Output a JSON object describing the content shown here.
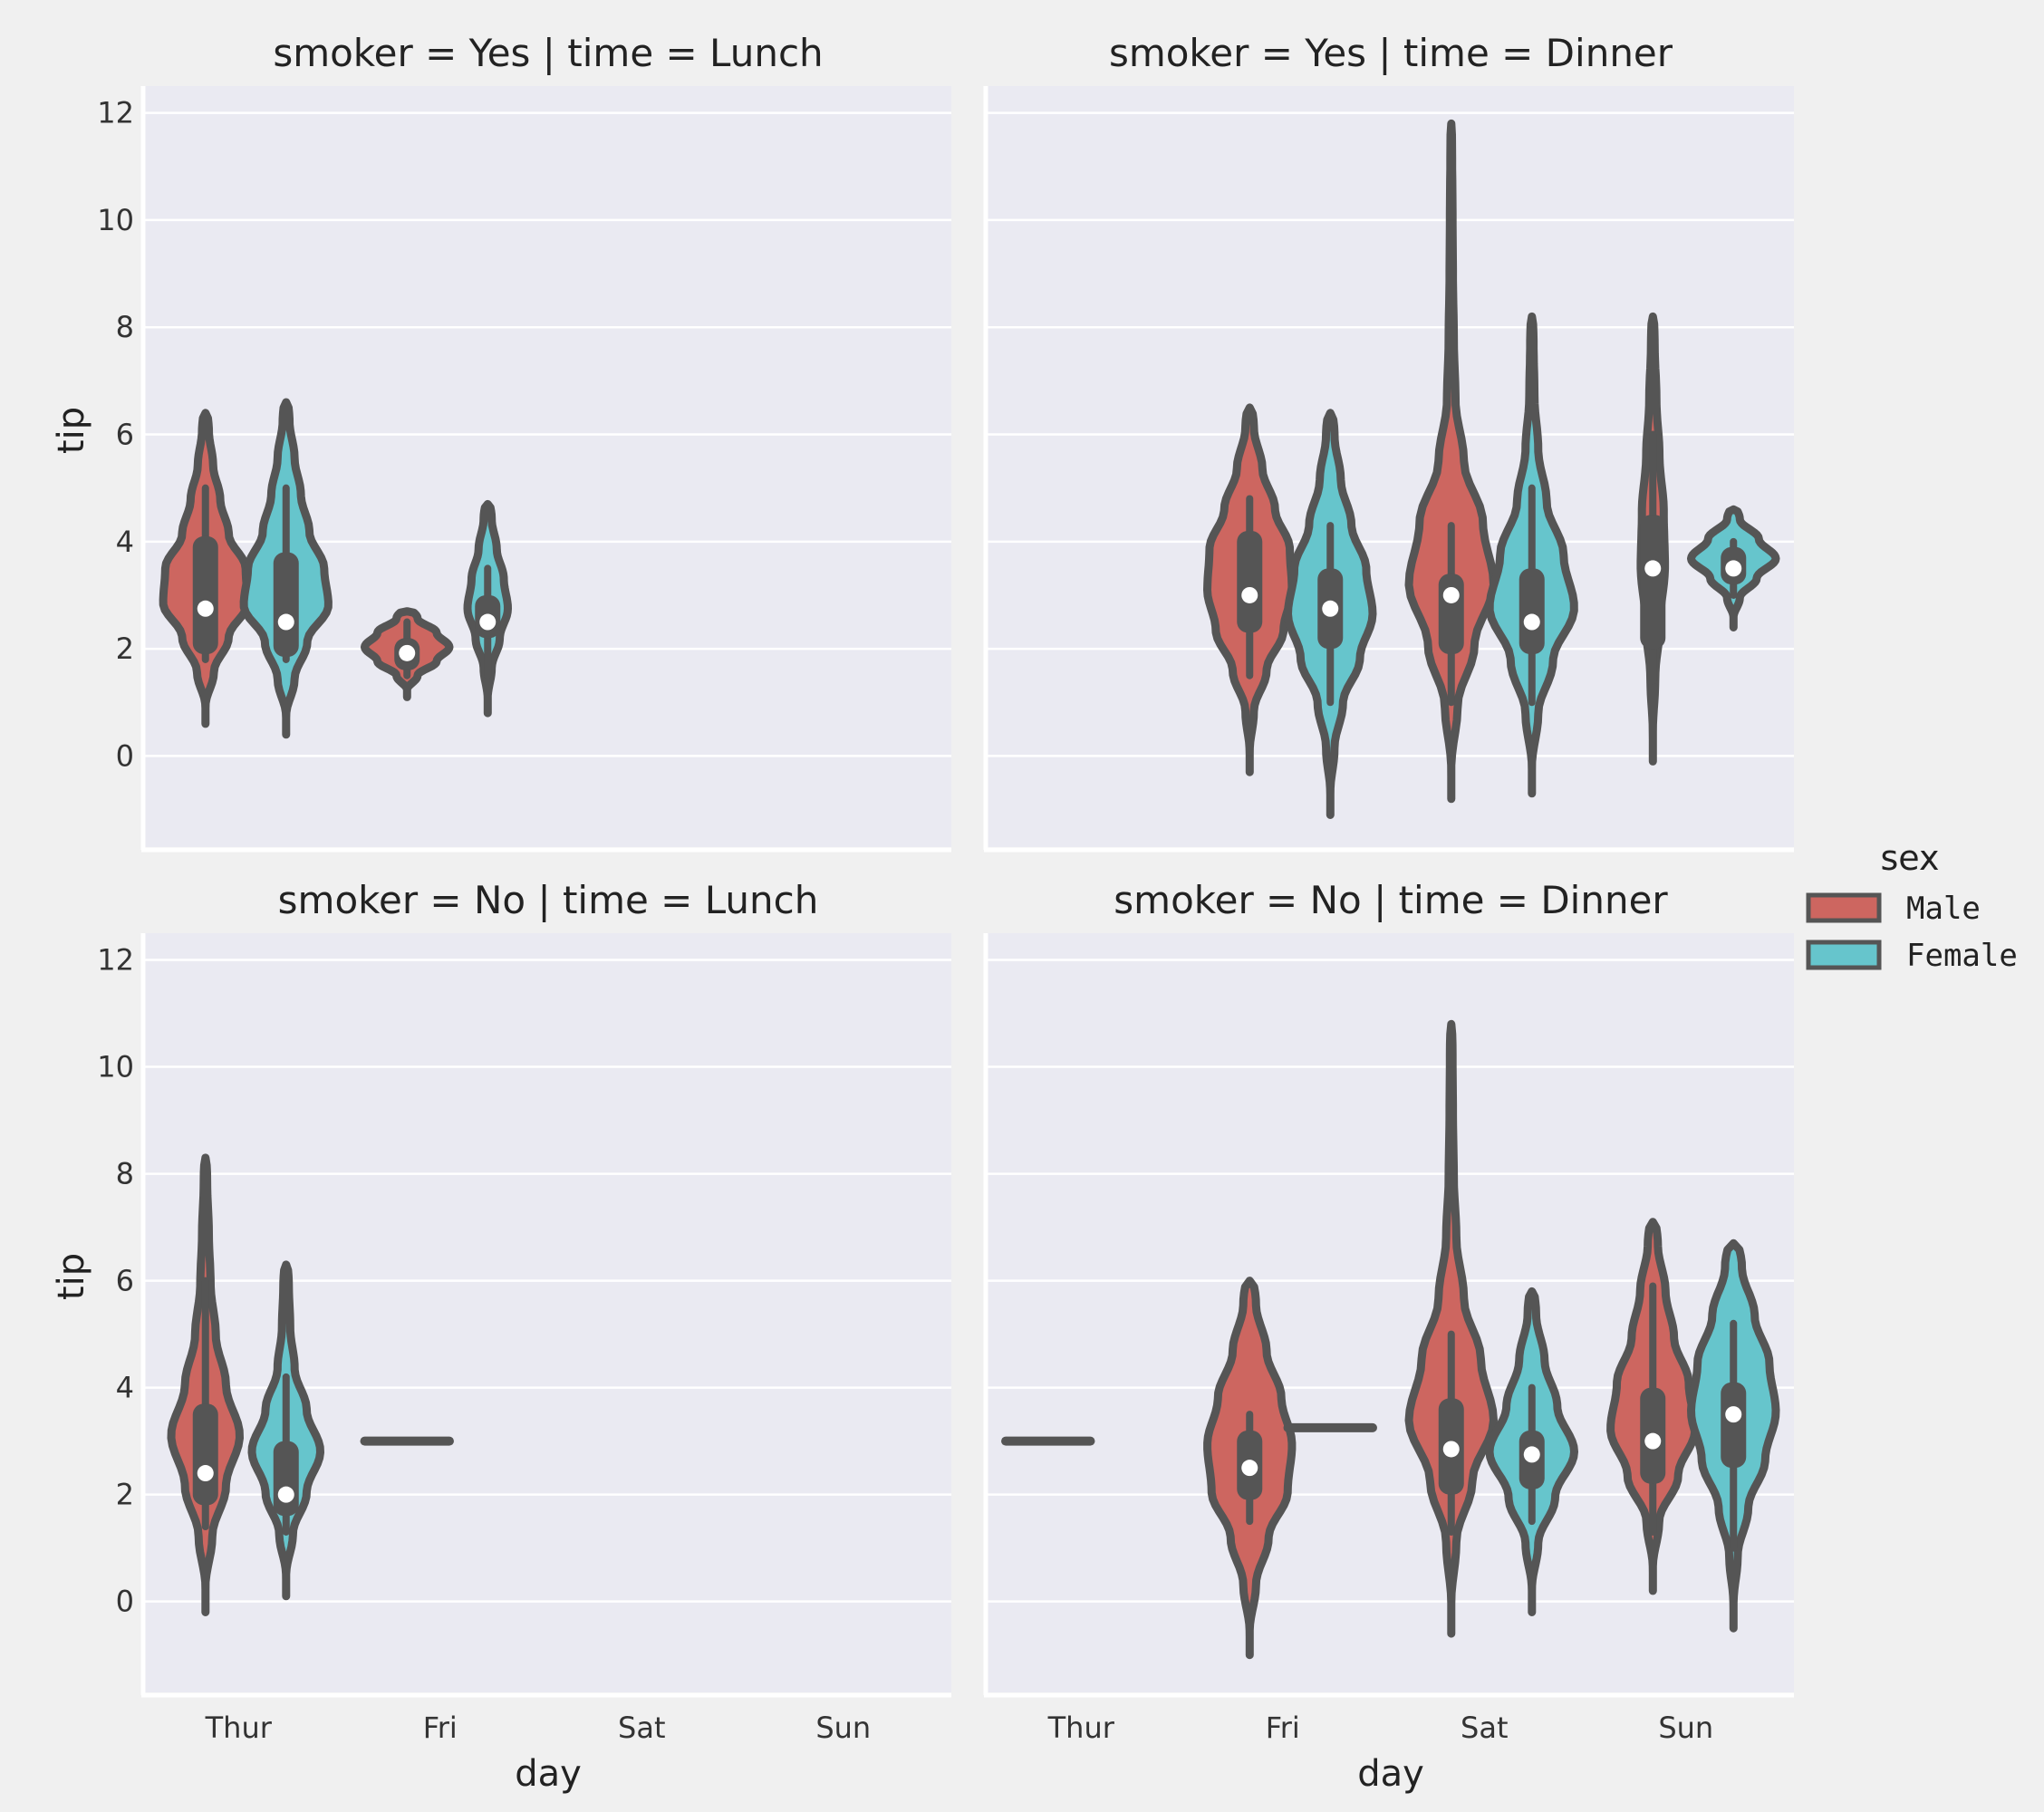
{
  "colors": {
    "background": "#f0f0f0",
    "panel": "#eaeaf2",
    "grid": "#ffffff",
    "outline": "#555555",
    "Male": "#cd6660",
    "Female": "#66c5cc",
    "median_dot": "#ffffff"
  },
  "chart_data": {
    "type": "violin",
    "row_var": "smoker",
    "col_var": "time",
    "categories": [
      "Thur",
      "Fri",
      "Sat",
      "Sun"
    ],
    "xlabel": "day",
    "ylabel": "tip",
    "ylim": [
      -1.7,
      12.5
    ],
    "yticks": [
      0,
      2,
      4,
      6,
      8,
      10,
      12
    ],
    "grid": true,
    "legend": {
      "title": "sex",
      "position": "right",
      "entries": [
        {
          "label": "Male",
          "color": "#cd6660"
        },
        {
          "label": "Female",
          "color": "#66c5cc"
        }
      ]
    },
    "panels": [
      {
        "title": "smoker = Yes | time = Lunch",
        "violins": [
          {
            "day": "Thur",
            "sex": "Male",
            "ymin": 0.6,
            "ymax": 6.4,
            "q1": 1.9,
            "median": 2.75,
            "q3": 4.1,
            "wmin": 1.8,
            "wmax": 5.0,
            "halfwidth": 0.21,
            "shape": [
              0.2,
              0.55,
              1.0,
              0.95,
              0.55,
              0.35,
              0.18,
              0.08
            ]
          },
          {
            "day": "Thur",
            "sex": "Female",
            "ymin": 0.4,
            "ymax": 6.6,
            "q1": 1.85,
            "median": 2.5,
            "q3": 3.8,
            "wmin": 1.8,
            "wmax": 5.0,
            "halfwidth": 0.21,
            "shape": [
              0.2,
              0.5,
              1.0,
              0.9,
              0.55,
              0.35,
              0.2,
              0.08
            ]
          },
          {
            "day": "Fri",
            "sex": "Male",
            "ymin": 1.1,
            "ymax": 2.7,
            "q1": 1.6,
            "median": 1.92,
            "q3": 2.2,
            "wmin": 1.5,
            "wmax": 2.5,
            "halfwidth": 0.21,
            "shape": [
              0.25,
              0.7,
              1.0,
              0.7,
              0.25
            ]
          },
          {
            "day": "Fri",
            "sex": "Female",
            "ymin": 0.8,
            "ymax": 4.7,
            "q1": 2.2,
            "median": 2.5,
            "q3": 3.0,
            "wmin": 1.5,
            "wmax": 3.5,
            "halfwidth": 0.1,
            "shape": [
              0.2,
              0.6,
              1.0,
              0.8,
              0.45,
              0.2
            ]
          }
        ]
      },
      {
        "title": "smoker = Yes | time = Dinner",
        "violins": [
          {
            "day": "Fri",
            "sex": "Male",
            "ymin": -0.3,
            "ymax": 6.5,
            "q1": 2.3,
            "median": 3.0,
            "q3": 4.2,
            "wmin": 1.5,
            "wmax": 4.8,
            "halfwidth": 0.21,
            "shape": [
              0.1,
              0.4,
              0.8,
              1.0,
              0.95,
              0.6,
              0.3,
              0.1
            ]
          },
          {
            "day": "Fri",
            "sex": "Female",
            "ymin": -1.1,
            "ymax": 6.4,
            "q1": 2.0,
            "median": 2.75,
            "q3": 3.5,
            "wmin": 1.0,
            "wmax": 4.3,
            "halfwidth": 0.21,
            "shape": [
              0.1,
              0.3,
              0.7,
              1.0,
              0.85,
              0.5,
              0.25,
              0.1
            ]
          },
          {
            "day": "Sat",
            "sex": "Male",
            "ymin": -0.8,
            "ymax": 11.8,
            "q1": 1.9,
            "median": 3.0,
            "q3": 3.4,
            "wmin": 1.0,
            "wmax": 4.3,
            "halfwidth": 0.21,
            "shape": [
              0.15,
              0.55,
              1.0,
              0.75,
              0.3,
              0.1,
              0.06,
              0.04,
              0.03,
              0.02
            ]
          },
          {
            "day": "Sat",
            "sex": "Female",
            "ymin": -0.7,
            "ymax": 8.2,
            "q1": 1.9,
            "median": 2.5,
            "q3": 3.5,
            "wmin": 1.0,
            "wmax": 5.0,
            "halfwidth": 0.21,
            "shape": [
              0.15,
              0.5,
              1.0,
              0.75,
              0.35,
              0.15,
              0.06,
              0.04
            ]
          },
          {
            "day": "Sun",
            "sex": "Male",
            "ymin": -0.1,
            "ymax": 8.2,
            "q1": 2.0,
            "median": 3.5,
            "q3": 4.5,
            "wmin": 1.4,
            "wmax": 6.0,
            "halfwidth": 0.06,
            "shape": [
              0.2,
              0.6,
              1.0,
              0.9,
              0.55,
              0.3,
              0.15
            ]
          },
          {
            "day": "Sun",
            "sex": "Female",
            "ymin": 2.4,
            "ymax": 4.6,
            "q1": 3.2,
            "median": 3.5,
            "q3": 3.9,
            "wmin": 3.0,
            "wmax": 4.0,
            "halfwidth": 0.21,
            "shape": [
              0.15,
              0.55,
              1.0,
              0.6,
              0.15
            ]
          }
        ]
      },
      {
        "title": "smoker = No | time = Lunch",
        "violins": [
          {
            "day": "Thur",
            "sex": "Male",
            "ymin": -0.2,
            "ymax": 8.3,
            "q1": 1.8,
            "median": 2.4,
            "q3": 3.7,
            "wmin": 1.4,
            "wmax": 6.0,
            "halfwidth": 0.17,
            "shape": [
              0.2,
              0.6,
              1.0,
              0.6,
              0.3,
              0.15,
              0.1,
              0.05
            ]
          },
          {
            "day": "Thur",
            "sex": "Female",
            "ymin": 0.1,
            "ymax": 6.3,
            "q1": 1.6,
            "median": 2.0,
            "q3": 3.0,
            "wmin": 1.3,
            "wmax": 4.2,
            "halfwidth": 0.17,
            "shape": [
              0.2,
              0.6,
              1.0,
              0.6,
              0.25,
              0.12,
              0.08
            ]
          },
          {
            "day": "Fri",
            "sex": "Male",
            "flat": true,
            "y": 3.0,
            "halfwidth": 0.21
          }
        ]
      },
      {
        "title": "smoker = No | time = Dinner",
        "violins": [
          {
            "day": "Thur",
            "sex": "Male",
            "flat": true,
            "y": 3.0,
            "halfwidth": 0.21
          },
          {
            "day": "Fri",
            "sex": "Male",
            "ymin": -1.0,
            "ymax": 6.0,
            "q1": 1.9,
            "median": 2.5,
            "q3": 3.2,
            "wmin": 1.5,
            "wmax": 3.5,
            "halfwidth": 0.21,
            "shape": [
              0.15,
              0.45,
              0.9,
              1.0,
              0.75,
              0.4,
              0.15
            ]
          },
          {
            "day": "Fri",
            "sex": "Female",
            "flat": true,
            "y": 3.25,
            "halfwidth": 0.21
          },
          {
            "day": "Sat",
            "sex": "Male",
            "ymin": -0.6,
            "ymax": 10.8,
            "q1": 2.0,
            "median": 2.85,
            "q3": 3.8,
            "wmin": 1.3,
            "wmax": 5.0,
            "halfwidth": 0.21,
            "shape": [
              0.12,
              0.5,
              1.0,
              0.7,
              0.3,
              0.12,
              0.06,
              0.04,
              0.03
            ]
          },
          {
            "day": "Sat",
            "sex": "Female",
            "ymin": -0.2,
            "ymax": 5.8,
            "q1": 2.1,
            "median": 2.75,
            "q3": 3.2,
            "wmin": 1.5,
            "wmax": 4.0,
            "halfwidth": 0.21,
            "shape": [
              0.15,
              0.55,
              1.0,
              0.6,
              0.3,
              0.1
            ]
          },
          {
            "day": "Sun",
            "sex": "Male",
            "ymin": 0.2,
            "ymax": 7.1,
            "q1": 2.2,
            "median": 3.0,
            "q3": 4.0,
            "wmin": 1.3,
            "wmax": 5.9,
            "halfwidth": 0.21,
            "shape": [
              0.15,
              0.6,
              1.0,
              0.85,
              0.5,
              0.3,
              0.12
            ]
          },
          {
            "day": "Sun",
            "sex": "Female",
            "ymin": -0.5,
            "ymax": 6.7,
            "q1": 2.5,
            "median": 3.5,
            "q3": 4.1,
            "wmin": 1.0,
            "wmax": 5.2,
            "halfwidth": 0.21,
            "shape": [
              0.1,
              0.35,
              0.75,
              1.0,
              0.85,
              0.5,
              0.2
            ]
          }
        ]
      }
    ]
  }
}
